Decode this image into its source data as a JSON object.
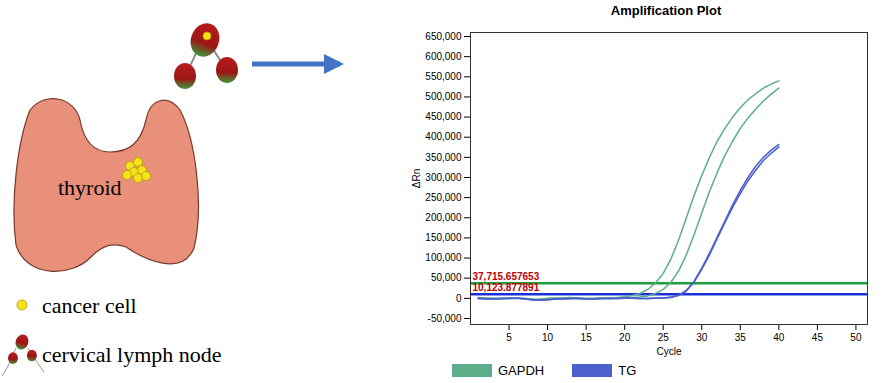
{
  "chart_data": {
    "type": "line",
    "title": "Amplification Plot",
    "x_label": "Cycle",
    "y_label": "ΔRn",
    "x": [
      1,
      2,
      3,
      4,
      5,
      6,
      7,
      8,
      9,
      10,
      11,
      12,
      13,
      14,
      15,
      16,
      17,
      18,
      19,
      20,
      21,
      22,
      23,
      24,
      25,
      26,
      27,
      28,
      29,
      30,
      31,
      32,
      33,
      34,
      35,
      36,
      37,
      38,
      39,
      40
    ],
    "series": [
      {
        "name": "GAPDH",
        "color": "#5cae8a",
        "values": [
          2000,
          1000,
          0,
          -1000,
          0,
          1000,
          0,
          -2000,
          -3000,
          -1000,
          0,
          1000,
          2000,
          1000,
          0,
          -1000,
          0,
          1000,
          2000,
          4000,
          7000,
          12000,
          22000,
          38000,
          62000,
          98000,
          145000,
          200000,
          255000,
          305000,
          350000,
          390000,
          422000,
          450000,
          473000,
          493000,
          508000,
          522000,
          532000,
          540000
        ]
      },
      {
        "name": "GAPDH",
        "color": "#5cae8a",
        "values": [
          1000,
          0,
          -1000,
          0,
          1000,
          0,
          -1000,
          -2000,
          -2000,
          0,
          1000,
          0,
          1000,
          0,
          -1000,
          0,
          1000,
          0,
          1000,
          2000,
          2000,
          3000,
          6000,
          12000,
          22000,
          40000,
          68000,
          108000,
          158000,
          212000,
          265000,
          312000,
          355000,
          390000,
          422000,
          448000,
          470000,
          490000,
          507000,
          522000
        ]
      },
      {
        "name": "TG",
        "color": "#4b5fcf",
        "values": [
          0,
          -1000,
          -2000,
          -1000,
          0,
          1000,
          -1000,
          -3000,
          -5000,
          -4000,
          -2000,
          -1000,
          0,
          -1000,
          -2000,
          -1000,
          0,
          -1000,
          0,
          1000,
          0,
          -1000,
          0,
          1000,
          1000,
          3000,
          8000,
          20000,
          42000,
          75000,
          112000,
          152000,
          192000,
          232000,
          268000,
          300000,
          328000,
          350000,
          368000,
          382000
        ]
      },
      {
        "name": "TG",
        "color": "#4b5fcf",
        "values": [
          -1000,
          -2000,
          -1000,
          0,
          -1000,
          0,
          -2000,
          -4000,
          -5000,
          -3000,
          -1000,
          -2000,
          -1000,
          0,
          -1000,
          -2000,
          -1000,
          0,
          -1000,
          0,
          1000,
          0,
          -1000,
          0,
          1000,
          2000,
          7000,
          18000,
          40000,
          72000,
          108000,
          148000,
          188000,
          226000,
          260000,
          292000,
          318000,
          342000,
          360000,
          376000
        ]
      }
    ],
    "thresholds": [
      {
        "value": 37715.657653,
        "label": "37,715.657653",
        "color": "#1f9e3a"
      },
      {
        "value": 10123.877891,
        "label": "10,123.877891",
        "color": "#1a2fd6"
      }
    ],
    "xlim": [
      0,
      51.5
    ],
    "xticks": [
      5,
      10,
      15,
      20,
      25,
      30,
      35,
      40,
      45,
      50
    ],
    "ylim": [
      -65000,
      660000
    ],
    "yticks": [
      {
        "value": -50000,
        "label": "-50,000"
      },
      0,
      {
        "value": 50000,
        "label": "50,000"
      },
      {
        "value": 100000,
        "label": "100,000"
      },
      {
        "value": 150000,
        "label": "150,000"
      },
      {
        "value": 200000,
        "label": "200,000"
      },
      {
        "value": 250000,
        "label": "250,000"
      },
      {
        "value": 300000,
        "label": "300,000"
      },
      {
        "value": 350000,
        "label": "350,000"
      },
      {
        "value": 400000,
        "label": "400,000"
      },
      {
        "value": 450000,
        "label": "450,000"
      },
      {
        "value": 500000,
        "label": "500,000"
      },
      {
        "value": 550000,
        "label": "550,000"
      },
      {
        "value": 600000,
        "label": "600,000"
      },
      {
        "value": 650000,
        "label": "650,000"
      }
    ],
    "grid": false,
    "legend": "bottom"
  },
  "diagram": {
    "nodes": [
      {
        "label": "thyroid"
      }
    ],
    "legend": [
      {
        "label": "cancer cell"
      },
      {
        "label": "cervical lymph node"
      }
    ]
  }
}
